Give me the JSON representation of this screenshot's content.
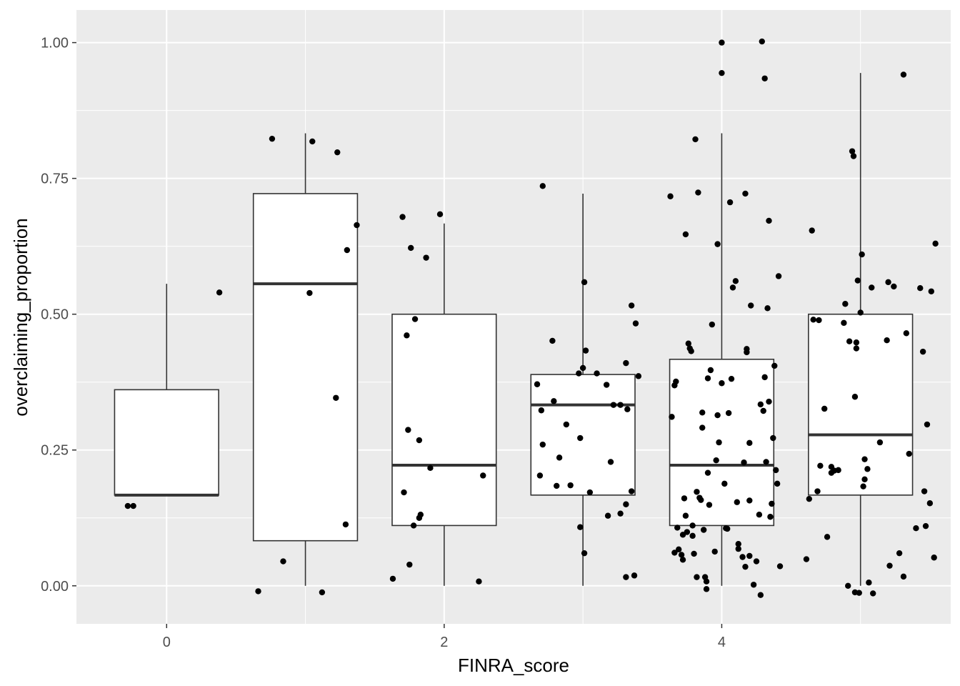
{
  "chart_data": {
    "type": "boxplot with jittered points",
    "xlabel": "FINRA_score",
    "ylabel": "overclaiming_proportion",
    "xlim": [
      -0.65,
      5.65
    ],
    "ylim": [
      -0.07,
      1.06
    ],
    "x_ticks": [
      0,
      2,
      4
    ],
    "x_tick_labels": [
      "0",
      "2",
      "4"
    ],
    "y_ticks": [
      0,
      0.25,
      0.5,
      0.75,
      1.0
    ],
    "y_tick_labels": [
      "0.00",
      "0.25",
      "0.50",
      "0.75",
      "1.00"
    ],
    "grid": true,
    "colors": {
      "panel_background": "#ebebeb",
      "grid": "#ffffff",
      "box_fill": "#ffffff",
      "box_stroke": "#333333",
      "point": "#000000"
    },
    "boxes": [
      {
        "x": 0,
        "whisker_low": 0.167,
        "q1": 0.167,
        "median": 0.167,
        "q3": 0.361,
        "whisker_high": 0.556
      },
      {
        "x": 1,
        "whisker_low": 0.0,
        "q1": 0.083,
        "median": 0.556,
        "q3": 0.722,
        "whisker_high": 0.833
      },
      {
        "x": 2,
        "whisker_low": 0.0,
        "q1": 0.111,
        "median": 0.222,
        "q3": 0.5,
        "whisker_high": 0.667
      },
      {
        "x": 3,
        "whisker_low": 0.0,
        "q1": 0.167,
        "median": 0.333,
        "q3": 0.389,
        "whisker_high": 0.722
      },
      {
        "x": 4,
        "whisker_low": 0.0,
        "q1": 0.111,
        "median": 0.222,
        "q3": 0.417,
        "whisker_high": 0.833
      },
      {
        "x": 5,
        "whisker_low": 0.0,
        "q1": 0.167,
        "median": 0.278,
        "q3": 0.5,
        "whisker_high": 0.944
      }
    ],
    "points": [
      [
        -0.28,
        0.147
      ],
      [
        -0.24,
        0.147
      ],
      [
        0.38,
        0.54
      ],
      [
        0.66,
        -0.01
      ],
      [
        0.76,
        0.823
      ],
      [
        0.84,
        0.045
      ],
      [
        1.03,
        0.539
      ],
      [
        1.05,
        0.818
      ],
      [
        1.12,
        -0.012
      ],
      [
        1.22,
        0.346
      ],
      [
        1.23,
        0.798
      ],
      [
        1.29,
        0.113
      ],
      [
        1.3,
        0.618
      ],
      [
        1.37,
        0.664
      ],
      [
        1.63,
        0.013
      ],
      [
        1.7,
        0.679
      ],
      [
        1.71,
        0.172
      ],
      [
        1.73,
        0.461
      ],
      [
        1.74,
        0.287
      ],
      [
        1.75,
        0.039
      ],
      [
        1.76,
        0.622
      ],
      [
        1.78,
        0.111
      ],
      [
        1.79,
        0.491
      ],
      [
        1.82,
        0.125
      ],
      [
        1.82,
        0.268
      ],
      [
        1.83,
        0.131
      ],
      [
        1.87,
        0.604
      ],
      [
        1.9,
        0.217
      ],
      [
        1.97,
        0.684
      ],
      [
        2.25,
        0.008
      ],
      [
        2.28,
        0.203
      ],
      [
        2.67,
        0.371
      ],
      [
        2.69,
        0.203
      ],
      [
        2.7,
        0.323
      ],
      [
        2.71,
        0.736
      ],
      [
        2.71,
        0.26
      ],
      [
        2.78,
        0.451
      ],
      [
        2.79,
        0.34
      ],
      [
        2.81,
        0.184
      ],
      [
        2.83,
        0.236
      ],
      [
        2.88,
        0.297
      ],
      [
        2.91,
        0.185
      ],
      [
        2.97,
        0.391
      ],
      [
        2.98,
        0.272
      ],
      [
        2.98,
        0.108
      ],
      [
        3.0,
        0.401
      ],
      [
        3.01,
        0.06
      ],
      [
        3.01,
        0.559
      ],
      [
        3.02,
        0.433
      ],
      [
        3.05,
        0.172
      ],
      [
        3.1,
        0.391
      ],
      [
        3.17,
        0.37
      ],
      [
        3.18,
        0.129
      ],
      [
        3.2,
        0.228
      ],
      [
        3.22,
        0.333
      ],
      [
        3.27,
        0.333
      ],
      [
        3.27,
        0.133
      ],
      [
        3.31,
        0.15
      ],
      [
        3.31,
        0.41
      ],
      [
        3.31,
        0.016
      ],
      [
        3.32,
        0.325
      ],
      [
        3.35,
        0.174
      ],
      [
        3.35,
        0.516
      ],
      [
        3.37,
        0.019
      ],
      [
        3.38,
        0.483
      ],
      [
        3.4,
        0.386
      ],
      [
        3.63,
        0.717
      ],
      [
        3.64,
        0.311
      ],
      [
        3.66,
        0.369
      ],
      [
        3.66,
        0.061
      ],
      [
        3.67,
        0.376
      ],
      [
        3.68,
        0.107
      ],
      [
        3.69,
        0.067
      ],
      [
        3.71,
        0.057
      ],
      [
        3.72,
        0.048
      ],
      [
        3.72,
        0.094
      ],
      [
        3.73,
        0.161
      ],
      [
        3.74,
        0.129
      ],
      [
        3.74,
        0.647
      ],
      [
        3.75,
        0.099
      ],
      [
        3.76,
        0.446
      ],
      [
        3.77,
        0.437
      ],
      [
        3.78,
        0.432
      ],
      [
        3.79,
        0.111
      ],
      [
        3.79,
        0.092
      ],
      [
        3.8,
        0.059
      ],
      [
        3.81,
        0.822
      ],
      [
        3.82,
        0.173
      ],
      [
        3.82,
        0.016
      ],
      [
        3.83,
        0.724
      ],
      [
        3.84,
        0.162
      ],
      [
        3.85,
        0.158
      ],
      [
        3.86,
        0.319
      ],
      [
        3.86,
        0.291
      ],
      [
        3.87,
        0.103
      ],
      [
        3.88,
        0.016
      ],
      [
        3.89,
        0.008
      ],
      [
        3.89,
        -0.006
      ],
      [
        3.9,
        0.382
      ],
      [
        3.9,
        0.208
      ],
      [
        3.91,
        0.149
      ],
      [
        3.92,
        0.397
      ],
      [
        3.93,
        0.481
      ],
      [
        3.95,
        0.063
      ],
      [
        3.96,
        0.231
      ],
      [
        3.97,
        0.314
      ],
      [
        3.97,
        0.629
      ],
      [
        3.98,
        0.264
      ],
      [
        4.0,
        0.373
      ],
      [
        4.0,
        1.0
      ],
      [
        4.0,
        0.944
      ],
      [
        4.02,
        0.188
      ],
      [
        4.03,
        0.106
      ],
      [
        4.04,
        0.105
      ],
      [
        4.05,
        0.318
      ],
      [
        4.06,
        0.706
      ],
      [
        4.07,
        0.381
      ],
      [
        4.08,
        0.549
      ],
      [
        4.1,
        0.561
      ],
      [
        4.11,
        0.154
      ],
      [
        4.12,
        0.077
      ],
      [
        4.12,
        0.068
      ],
      [
        4.15,
        0.053
      ],
      [
        4.16,
        0.227
      ],
      [
        4.17,
        0.722
      ],
      [
        4.17,
        0.035
      ],
      [
        4.18,
        0.43
      ],
      [
        4.18,
        0.436
      ],
      [
        4.2,
        0.157
      ],
      [
        4.2,
        0.055
      ],
      [
        4.2,
        0.263
      ],
      [
        4.21,
        0.516
      ],
      [
        4.23,
        0.002
      ],
      [
        4.25,
        0.045
      ],
      [
        4.27,
        0.131
      ],
      [
        4.28,
        -0.017
      ],
      [
        4.28,
        0.334
      ],
      [
        4.29,
        1.002
      ],
      [
        4.3,
        0.322
      ],
      [
        4.31,
        0.934
      ],
      [
        4.31,
        0.384
      ],
      [
        4.32,
        0.228
      ],
      [
        4.33,
        0.511
      ],
      [
        4.34,
        0.672
      ],
      [
        4.34,
        0.339
      ],
      [
        4.35,
        0.127
      ],
      [
        4.36,
        0.151
      ],
      [
        4.37,
        0.272
      ],
      [
        4.38,
        0.405
      ],
      [
        4.39,
        0.213
      ],
      [
        4.4,
        0.188
      ],
      [
        4.41,
        0.57
      ],
      [
        4.42,
        0.036
      ],
      [
        4.61,
        0.049
      ],
      [
        4.63,
        0.16
      ],
      [
        4.65,
        0.654
      ],
      [
        4.66,
        0.49
      ],
      [
        4.69,
        0.174
      ],
      [
        4.7,
        0.489
      ],
      [
        4.71,
        0.221
      ],
      [
        4.74,
        0.326
      ],
      [
        4.76,
        0.09
      ],
      [
        4.79,
        0.219
      ],
      [
        4.79,
        0.208
      ],
      [
        4.81,
        0.212
      ],
      [
        4.84,
        0.213
      ],
      [
        4.88,
        0.484
      ],
      [
        4.89,
        0.519
      ],
      [
        4.91,
        0.0
      ],
      [
        4.92,
        0.45
      ],
      [
        4.94,
        0.8
      ],
      [
        4.95,
        0.791
      ],
      [
        4.96,
        0.348
      ],
      [
        4.96,
        -0.012
      ],
      [
        4.97,
        0.437
      ],
      [
        4.97,
        0.448
      ],
      [
        4.98,
        0.562
      ],
      [
        4.99,
        -0.013
      ],
      [
        5.0,
        0.503
      ],
      [
        5.01,
        0.61
      ],
      [
        5.02,
        0.183
      ],
      [
        5.03,
        0.233
      ],
      [
        5.03,
        0.196
      ],
      [
        5.05,
        0.215
      ],
      [
        5.06,
        0.006
      ],
      [
        5.08,
        0.549
      ],
      [
        5.09,
        -0.014
      ],
      [
        5.14,
        0.264
      ],
      [
        5.19,
        0.452
      ],
      [
        5.2,
        0.559
      ],
      [
        5.21,
        0.037
      ],
      [
        5.24,
        0.551
      ],
      [
        5.28,
        0.06
      ],
      [
        5.31,
        0.941
      ],
      [
        5.31,
        0.017
      ],
      [
        5.33,
        0.465
      ],
      [
        5.35,
        0.243
      ],
      [
        5.4,
        0.106
      ],
      [
        5.43,
        0.548
      ],
      [
        5.45,
        0.431
      ],
      [
        5.46,
        0.174
      ],
      [
        5.47,
        0.11
      ],
      [
        5.48,
        0.297
      ],
      [
        5.5,
        0.152
      ],
      [
        5.51,
        0.542
      ],
      [
        5.53,
        0.052
      ],
      [
        5.54,
        0.63
      ]
    ]
  }
}
